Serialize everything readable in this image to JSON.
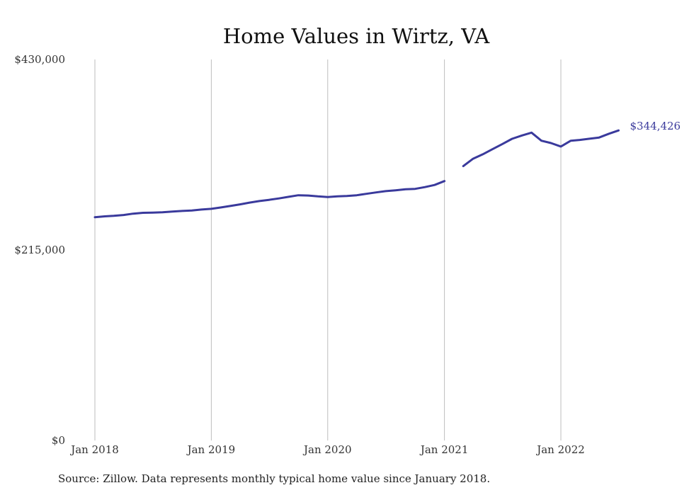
{
  "chart_data": {
    "type": "line",
    "title": "Home Values in Wirtz, VA",
    "xlabel": "",
    "ylabel": "",
    "ylim": [
      0,
      430000
    ],
    "y_ticks": [
      {
        "value": 0,
        "label": "$0"
      },
      {
        "value": 215000,
        "label": "$215,000"
      },
      {
        "value": 430000,
        "label": "$430,000"
      }
    ],
    "x_ticks": [
      "Jan 2018",
      "Jan 2019",
      "Jan 2020",
      "Jan 2021",
      "Jan 2022"
    ],
    "grid": "vertical lines at x ticks",
    "color": "#3a3a9c",
    "end_label": "$344,426",
    "series": [
      {
        "segments": [
          {
            "x": [
              "2018-01",
              "2018-02",
              "2018-03",
              "2018-04",
              "2018-05",
              "2018-06",
              "2018-07",
              "2018-08",
              "2018-09",
              "2018-10",
              "2018-11",
              "2018-12",
              "2019-01",
              "2019-02",
              "2019-03",
              "2019-04",
              "2019-05",
              "2019-06",
              "2019-07",
              "2019-08",
              "2019-09",
              "2019-10",
              "2019-11",
              "2019-12",
              "2020-01",
              "2020-02",
              "2020-03",
              "2020-04",
              "2020-05",
              "2020-06",
              "2020-07",
              "2020-08",
              "2020-09",
              "2020-10",
              "2020-11",
              "2020-12",
              "2021-01"
            ],
            "y": [
              252000,
              253000,
              253500,
              254500,
              256000,
              257000,
              257200,
              257600,
              258400,
              259000,
              259600,
              260600,
              261400,
              263000,
              264600,
              266500,
              268500,
              270200,
              271600,
              273200,
              275000,
              276800,
              276500,
              275500,
              274800,
              275500,
              276000,
              276800,
              278400,
              280000,
              281400,
              282400,
              283500,
              284000,
              286000,
              288400,
              292800
            ]
          },
          {
            "x": [
              "2021-03",
              "2021-04",
              "2021-05",
              "2021-06",
              "2021-07",
              "2021-08",
              "2021-09",
              "2021-10",
              "2021-11",
              "2021-12",
              "2022-01",
              "2022-02",
              "2022-03",
              "2022-04",
              "2022-05",
              "2022-06",
              "2022-07"
            ],
            "y": [
              309600,
              318000,
              323000,
              328800,
              334400,
              340500,
              344200,
              347400,
              338300,
              335700,
              331800,
              338300,
              339200,
              340600,
              341900,
              346200,
              349900
            ]
          }
        ]
      }
    ]
  },
  "source_note": "Source: Zillow. Data represents monthly typical home value since January 2018."
}
